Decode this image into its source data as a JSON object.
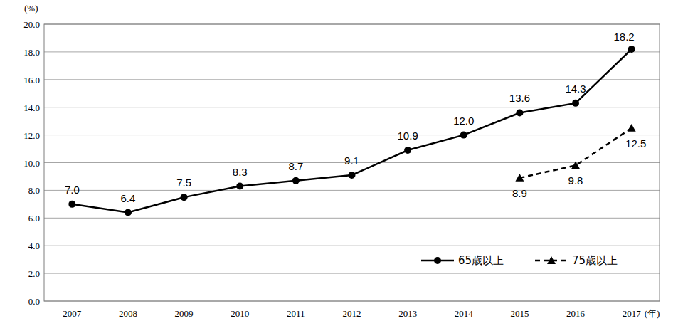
{
  "chart_data": {
    "type": "line",
    "y_label": "(%)",
    "x_label": "(年)",
    "categories": [
      "2007",
      "2008",
      "2009",
      "2010",
      "2011",
      "2012",
      "2013",
      "2014",
      "2015",
      "2016",
      "2017"
    ],
    "series": [
      {
        "name": "65歳以上",
        "color": "#000000",
        "marker": "circle",
        "line_style": "solid",
        "values": [
          7.0,
          6.4,
          7.5,
          8.3,
          8.7,
          9.1,
          10.9,
          12.0,
          13.6,
          14.3,
          18.2
        ],
        "value_labels": [
          "7.0",
          "6.4",
          "7.5",
          "8.3",
          "8.7",
          "9.1",
          "10.9",
          "12.0",
          "13.6",
          "14.3",
          "18.2"
        ]
      },
      {
        "name": "75歳以上",
        "color": "#000000",
        "marker": "triangle",
        "line_style": "dashed",
        "values": [
          null,
          null,
          null,
          null,
          null,
          null,
          null,
          null,
          8.9,
          9.8,
          12.5
        ],
        "value_labels": [
          null,
          null,
          null,
          null,
          null,
          null,
          null,
          null,
          "8.9",
          "9.8",
          "12.5"
        ]
      }
    ],
    "ylim": [
      0,
      20
    ],
    "yticks": [
      {
        "value": 0,
        "label": "0.0"
      },
      {
        "value": 2,
        "label": "2.0"
      },
      {
        "value": 4,
        "label": "4.0"
      },
      {
        "value": 6,
        "label": "6.0"
      },
      {
        "value": 8,
        "label": "8.0"
      },
      {
        "value": 10,
        "label": "10.0"
      },
      {
        "value": 12,
        "label": "12.0"
      },
      {
        "value": 14,
        "label": "14.0"
      },
      {
        "value": 16,
        "label": "16.0"
      },
      {
        "value": 18,
        "label": "18.0"
      },
      {
        "value": 20,
        "label": "20.0"
      }
    ],
    "grid": true,
    "legend": "lower right",
    "data_labels": true
  }
}
